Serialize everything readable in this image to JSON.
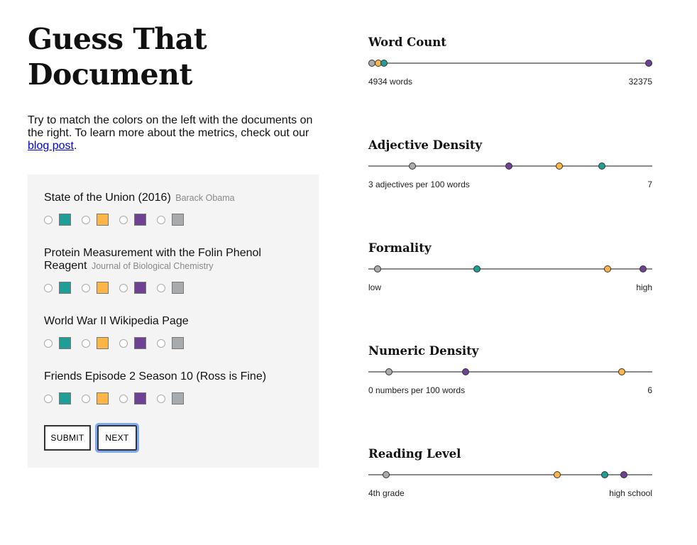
{
  "page": {
    "title": "Guess That Document",
    "intro_before_link": "Try to match the colors on the left with the documents on the right. To learn more about the metrics, check out our ",
    "intro_link": "blog post",
    "intro_after_link": "."
  },
  "colors": {
    "teal": "#1f9e98",
    "orange": "#fdb547",
    "purple": "#6d4193",
    "gray": "#a8abae"
  },
  "swatch_order": [
    "teal",
    "orange",
    "purple",
    "gray"
  ],
  "quiz": {
    "documents": [
      {
        "name": "State of the Union (2016)",
        "author": "Barack Obama"
      },
      {
        "name": "Protein Measurement with the Folin Phenol Reagent",
        "author": "Journal of Biological Chemistry"
      },
      {
        "name": "World War II Wikipedia Page",
        "author": ""
      },
      {
        "name": "Friends Episode 2 Season 10 (Ross is Fine)",
        "author": ""
      }
    ],
    "submit_label": "SUBMIT",
    "next_label": "NEXT"
  },
  "metrics": [
    {
      "title": "Word Count",
      "min_label": "4934 words",
      "max_label": "32375",
      "min": 4934,
      "max": 32375,
      "values": {
        "gray": 4934,
        "orange": 5550,
        "teal": 6160,
        "purple": 32375
      }
    },
    {
      "title": "Adjective Density",
      "min_label": "3 adjectives per 100 words",
      "max_label": "7",
      "min": 3,
      "max": 7,
      "values": {
        "gray": 3.58,
        "purple": 4.98,
        "orange": 5.71,
        "teal": 6.32
      }
    },
    {
      "title": "Formality",
      "min_label": "low",
      "max_label": "high",
      "min": 0,
      "max": 1,
      "values": {
        "gray": 0.02,
        "teal": 0.38,
        "orange": 0.85,
        "purple": 0.98
      }
    },
    {
      "title": "Numeric Density",
      "min_label": "0 numbers per 100 words",
      "max_label": "6",
      "min": 0,
      "max": 6,
      "values": {
        "gray": 0.37,
        "purple": 2.03,
        "orange": 5.42
      }
    },
    {
      "title": "Reading Level",
      "min_label": "4th grade",
      "max_label": "high school",
      "min": 0,
      "max": 1,
      "values": {
        "gray": 0.05,
        "orange": 0.67,
        "teal": 0.84,
        "purple": 0.91
      }
    }
  ]
}
